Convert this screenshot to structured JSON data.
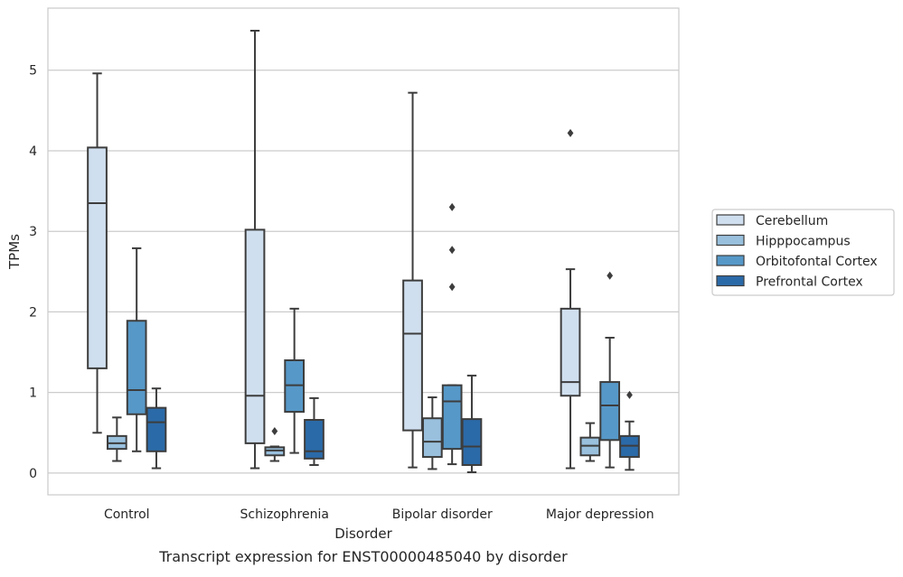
{
  "chart_data": {
    "type": "boxplot",
    "caption": "Transcript expression for ENST00000485040 by disorder",
    "xlabel": "Disorder",
    "ylabel": "TPMs",
    "ylim": [
      -0.27,
      5.77
    ],
    "yticks": [
      0,
      1,
      2,
      3,
      4,
      5
    ],
    "grid": "horizontal",
    "legend_position": "right",
    "categories": [
      "Control",
      "Schizophrenia",
      "Bipolar disorder",
      "Major depression"
    ],
    "series": [
      {
        "name": "Cerebellum",
        "color": "#d0dfef",
        "boxes": [
          {
            "whisker_low": 0.5,
            "q1": 1.3,
            "median": 3.35,
            "q3": 4.04,
            "whisker_high": 4.96,
            "outliers": []
          },
          {
            "whisker_low": 0.06,
            "q1": 0.37,
            "median": 0.96,
            "q3": 3.02,
            "whisker_high": 5.49,
            "outliers": []
          },
          {
            "whisker_low": 0.07,
            "q1": 0.53,
            "median": 1.73,
            "q3": 2.39,
            "whisker_high": 4.72,
            "outliers": []
          },
          {
            "whisker_low": 0.06,
            "q1": 0.96,
            "median": 1.13,
            "q3": 2.04,
            "whisker_high": 2.53,
            "outliers": [
              4.22
            ]
          }
        ]
      },
      {
        "name": "Hipppocampus",
        "color": "#99c0dd",
        "boxes": [
          {
            "whisker_low": 0.15,
            "q1": 0.3,
            "median": 0.37,
            "q3": 0.46,
            "whisker_high": 0.69,
            "outliers": []
          },
          {
            "whisker_low": 0.15,
            "q1": 0.22,
            "median": 0.28,
            "q3": 0.32,
            "whisker_high": 0.33,
            "outliers": [
              0.52
            ]
          },
          {
            "whisker_low": 0.05,
            "q1": 0.2,
            "median": 0.39,
            "q3": 0.68,
            "whisker_high": 0.94,
            "outliers": []
          },
          {
            "whisker_low": 0.15,
            "q1": 0.22,
            "median": 0.34,
            "q3": 0.44,
            "whisker_high": 0.62,
            "outliers": []
          }
        ]
      },
      {
        "name": "Orbitofontal Cortex",
        "color": "#5698c8",
        "boxes": [
          {
            "whisker_low": 0.27,
            "q1": 0.73,
            "median": 1.03,
            "q3": 1.89,
            "whisker_high": 2.79,
            "outliers": []
          },
          {
            "whisker_low": 0.25,
            "q1": 0.76,
            "median": 1.09,
            "q3": 1.4,
            "whisker_high": 2.04,
            "outliers": []
          },
          {
            "whisker_low": 0.11,
            "q1": 0.3,
            "median": 0.89,
            "q3": 1.09,
            "whisker_high": 1.09,
            "outliers": [
              2.31,
              2.77,
              3.3
            ]
          },
          {
            "whisker_low": 0.07,
            "q1": 0.41,
            "median": 0.84,
            "q3": 1.13,
            "whisker_high": 1.68,
            "outliers": [
              2.45
            ]
          }
        ]
      },
      {
        "name": "Prefrontal Cortex",
        "color": "#2b6aa8",
        "boxes": [
          {
            "whisker_low": 0.06,
            "q1": 0.27,
            "median": 0.63,
            "q3": 0.81,
            "whisker_high": 1.05,
            "outliers": []
          },
          {
            "whisker_low": 0.1,
            "q1": 0.18,
            "median": 0.27,
            "q3": 0.66,
            "whisker_high": 0.93,
            "outliers": []
          },
          {
            "whisker_low": 0.01,
            "q1": 0.1,
            "median": 0.33,
            "q3": 0.67,
            "whisker_high": 1.21,
            "outliers": []
          },
          {
            "whisker_low": 0.04,
            "q1": 0.2,
            "median": 0.34,
            "q3": 0.46,
            "whisker_high": 0.64,
            "outliers": [
              0.97
            ]
          }
        ]
      }
    ]
  }
}
